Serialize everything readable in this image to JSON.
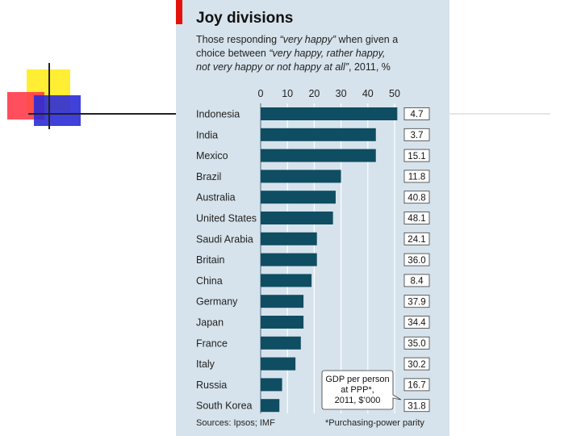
{
  "chart_data": {
    "type": "bar",
    "title": "Joy divisions",
    "subtitle": {
      "line1_pre": "Those responding ",
      "line1_em": "“very happy”",
      "line1_post": " when given a",
      "line2_pre": "choice between ",
      "line2_em": "“very happy, rather happy,",
      "line3_em": "not very happy or not happy at all”",
      "line3_post": ", 2011, %"
    },
    "categories": [
      "Indonesia",
      "India",
      "Mexico",
      "Brazil",
      "Australia",
      "United States",
      "Saudi Arabia",
      "Britain",
      "China",
      "Germany",
      "Japan",
      "France",
      "Italy",
      "Russia",
      "South Korea"
    ],
    "values": [
      51,
      43,
      43,
      30,
      28,
      27,
      21,
      21,
      19,
      16,
      16,
      15,
      13,
      8,
      7
    ],
    "gdp_per_person": [
      "4.7",
      "3.7",
      "15.1",
      "11.8",
      "40.8",
      "48.1",
      "24.1",
      "36.0",
      "8.4",
      "37.9",
      "34.4",
      "35.0",
      "30.2",
      "16.7",
      "31.8"
    ],
    "xticks": [
      "0",
      "10",
      "20",
      "30",
      "40",
      "50"
    ],
    "xlim": [
      0,
      52
    ],
    "grid": true,
    "callout": [
      "GDP per person",
      "at PPP*,",
      "2011, $’000"
    ],
    "sources": "Sources: Ipsos; IMF",
    "footnote": "*Purchasing-power parity",
    "colors": {
      "bar": "#0f4d62",
      "panel": "#d6e3ec",
      "grid": "#ffffff",
      "accent": "#e3120b"
    }
  }
}
